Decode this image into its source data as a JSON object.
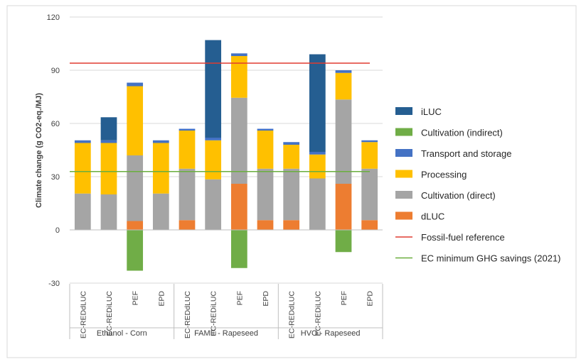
{
  "chart_data": {
    "type": "bar",
    "stacked": true,
    "title": "",
    "ylabel": "Climate change (g CO2-eq./MJ)",
    "xlabel": "",
    "ylim": [
      -30,
      120
    ],
    "yticks": [
      -30,
      0,
      30,
      60,
      90,
      120
    ],
    "grid": true,
    "legend_position": "right",
    "groups": [
      {
        "label": "Ethanol - Corn",
        "categories": [
          "EC-REDdLUC",
          "EC-REDiLUC",
          "PEF",
          "EPD"
        ]
      },
      {
        "label": "FAME - Rapeseed",
        "categories": [
          "EC-REDdLUC",
          "EC-REDiLUC",
          "PEF",
          "EPD"
        ]
      },
      {
        "label": "HVO - Rapeseed",
        "categories": [
          "EC-REDdLUC",
          "EC-REDiLUC",
          "PEF",
          "EPD"
        ]
      }
    ],
    "series": [
      {
        "name": "dLUC",
        "color": "#ED7D31",
        "values": [
          0,
          0,
          5,
          0,
          5.5,
          0,
          26,
          5.5,
          5.5,
          0,
          26,
          5.5
        ]
      },
      {
        "name": "Cultivation (direct)",
        "color": "#A5A5A5",
        "values": [
          20.5,
          20,
          37,
          20.5,
          29,
          28.5,
          48.5,
          29,
          29,
          29,
          47.5,
          29
        ]
      },
      {
        "name": "Processing",
        "color": "#FFC000",
        "values": [
          28.5,
          29,
          39,
          28.5,
          21.5,
          22,
          23.5,
          21.5,
          13.5,
          13.5,
          15,
          15
        ]
      },
      {
        "name": "Transport and storage",
        "color": "#4472C4",
        "values": [
          1.5,
          1.5,
          2,
          1.5,
          1,
          1.5,
          1.5,
          1,
          1.5,
          1.5,
          1.5,
          1
        ]
      },
      {
        "name": "Cultivation (indirect)",
        "color": "#70AD47",
        "values": [
          0,
          0,
          -23,
          0,
          0,
          0,
          -21.5,
          0,
          0,
          0,
          -12.5,
          0
        ]
      },
      {
        "name": "iLUC",
        "color": "#255E91",
        "values": [
          0,
          13,
          0,
          0,
          0,
          55,
          0,
          0,
          0,
          55,
          0,
          0
        ]
      }
    ],
    "legend_order": [
      "iLUC",
      "Cultivation (indirect)",
      "Transport and storage",
      "Processing",
      "Cultivation (direct)",
      "dLUC",
      "Fossil-fuel reference",
      "EC minimum GHG savings (2021)"
    ],
    "reference_lines": [
      {
        "name": "Fossil-fuel reference",
        "value": 94,
        "color": "#E03C31"
      },
      {
        "name": "EC minimum GHG savings (2021)",
        "value": 32.9,
        "color": "#6AAE3E"
      }
    ]
  }
}
